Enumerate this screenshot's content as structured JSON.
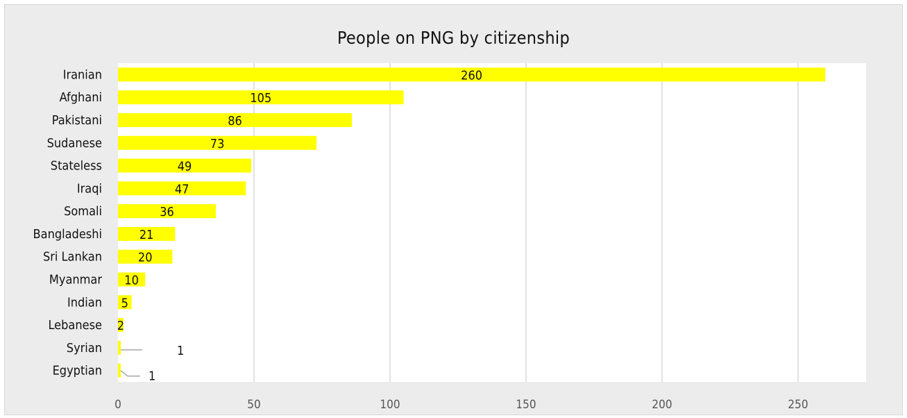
{
  "chart_data": {
    "type": "bar",
    "orientation": "horizontal",
    "title": "People on PNG by citizenship",
    "xlabel": "",
    "ylabel": "",
    "categories": [
      "Iranian",
      "Afghani",
      "Pakistani",
      "Sudanese",
      "Stateless",
      "Iraqi",
      "Somali",
      "Bangladeshi",
      "Sri Lankan",
      "Myanmar",
      "Indian",
      "Lebanese",
      "Syrian",
      "Egyptian"
    ],
    "values": [
      260,
      105,
      86,
      73,
      49,
      47,
      36,
      21,
      20,
      10,
      5,
      2,
      1,
      1
    ],
    "xlim": [
      0,
      275
    ],
    "xticks": [
      0,
      50,
      100,
      150,
      200,
      250
    ],
    "grid": true,
    "legend": "none",
    "colors": {
      "bar": "#ffff00",
      "grid": "#d9d9d9",
      "plot_bg": "#ffffff",
      "frame_bg": "#ececec",
      "leader": "#a6a6a6"
    }
  }
}
